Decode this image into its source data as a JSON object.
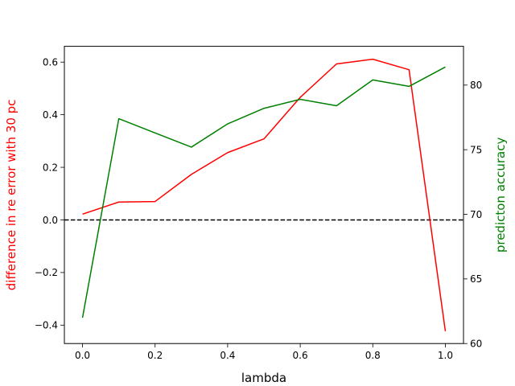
{
  "chart_data": {
    "type": "line",
    "title": "",
    "xlabel": "lambda",
    "ylabel_left": "difference in re error with 30 pc",
    "ylabel_right": "predicton accuracy",
    "xlim": [
      -0.05,
      1.05
    ],
    "ylim_left": [
      -0.47,
      0.66
    ],
    "ylim_right": [
      60,
      83
    ],
    "x_ticks": [
      "0.0",
      "0.2",
      "0.4",
      "0.6",
      "0.8",
      "1.0"
    ],
    "y_left_ticks": [
      "−0.4",
      "−0.2",
      "0.0",
      "0.2",
      "0.4",
      "0.6"
    ],
    "y_right_ticks": [
      "60",
      "65",
      "70",
      "75",
      "80"
    ],
    "grid": false,
    "legend": "none",
    "x": [
      0.0,
      0.1,
      0.2,
      0.3,
      0.4,
      0.5,
      0.6,
      0.7,
      0.8,
      0.9,
      1.0
    ],
    "series": [
      {
        "axis": "left",
        "color": "#ff0000",
        "values": [
          0.022,
          0.068,
          0.07,
          0.173,
          0.256,
          0.308,
          0.466,
          0.593,
          0.611,
          0.571,
          -0.423
        ]
      },
      {
        "axis": "right",
        "color": "#008000",
        "values": [
          62.0,
          77.4,
          76.3,
          75.2,
          77.0,
          78.2,
          78.9,
          78.4,
          80.4,
          79.9,
          81.4
        ]
      }
    ],
    "reference_line": {
      "y": 0.0,
      "axis": "left",
      "style": "dashed",
      "color": "#000000"
    },
    "colors": {
      "left_axis_label": "#ff0000",
      "right_axis_label": "#008000"
    }
  }
}
